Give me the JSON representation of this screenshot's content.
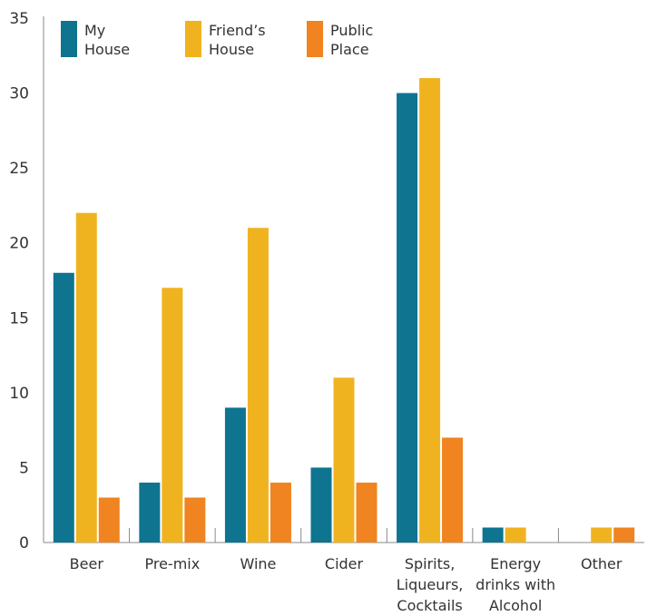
{
  "chart_data": {
    "type": "bar",
    "categories": [
      [
        "Beer"
      ],
      [
        "Pre-mix"
      ],
      [
        "Wine"
      ],
      [
        "Cider"
      ],
      [
        "Spirits,",
        "Liqueurs,",
        "Cocktails"
      ],
      [
        "Energy",
        "drinks with",
        "Alcohol"
      ],
      [
        "Other"
      ]
    ],
    "series": [
      {
        "name": [
          "My",
          "House"
        ],
        "color": "#0e7490",
        "values": [
          18,
          4,
          9,
          5,
          30,
          1,
          0
        ]
      },
      {
        "name": [
          "Friend’s",
          "House"
        ],
        "color": "#f0b320",
        "values": [
          22,
          17,
          21,
          11,
          31,
          1,
          1
        ]
      },
      {
        "name": [
          "Public",
          "Place"
        ],
        "color": "#ef8420",
        "values": [
          3,
          3,
          4,
          4,
          7,
          0,
          1
        ]
      }
    ],
    "ylim": [
      0,
      35
    ],
    "yticks": [
      0,
      5,
      10,
      15,
      20,
      25,
      30,
      35
    ],
    "legend_position": "top-left",
    "grid": false
  }
}
